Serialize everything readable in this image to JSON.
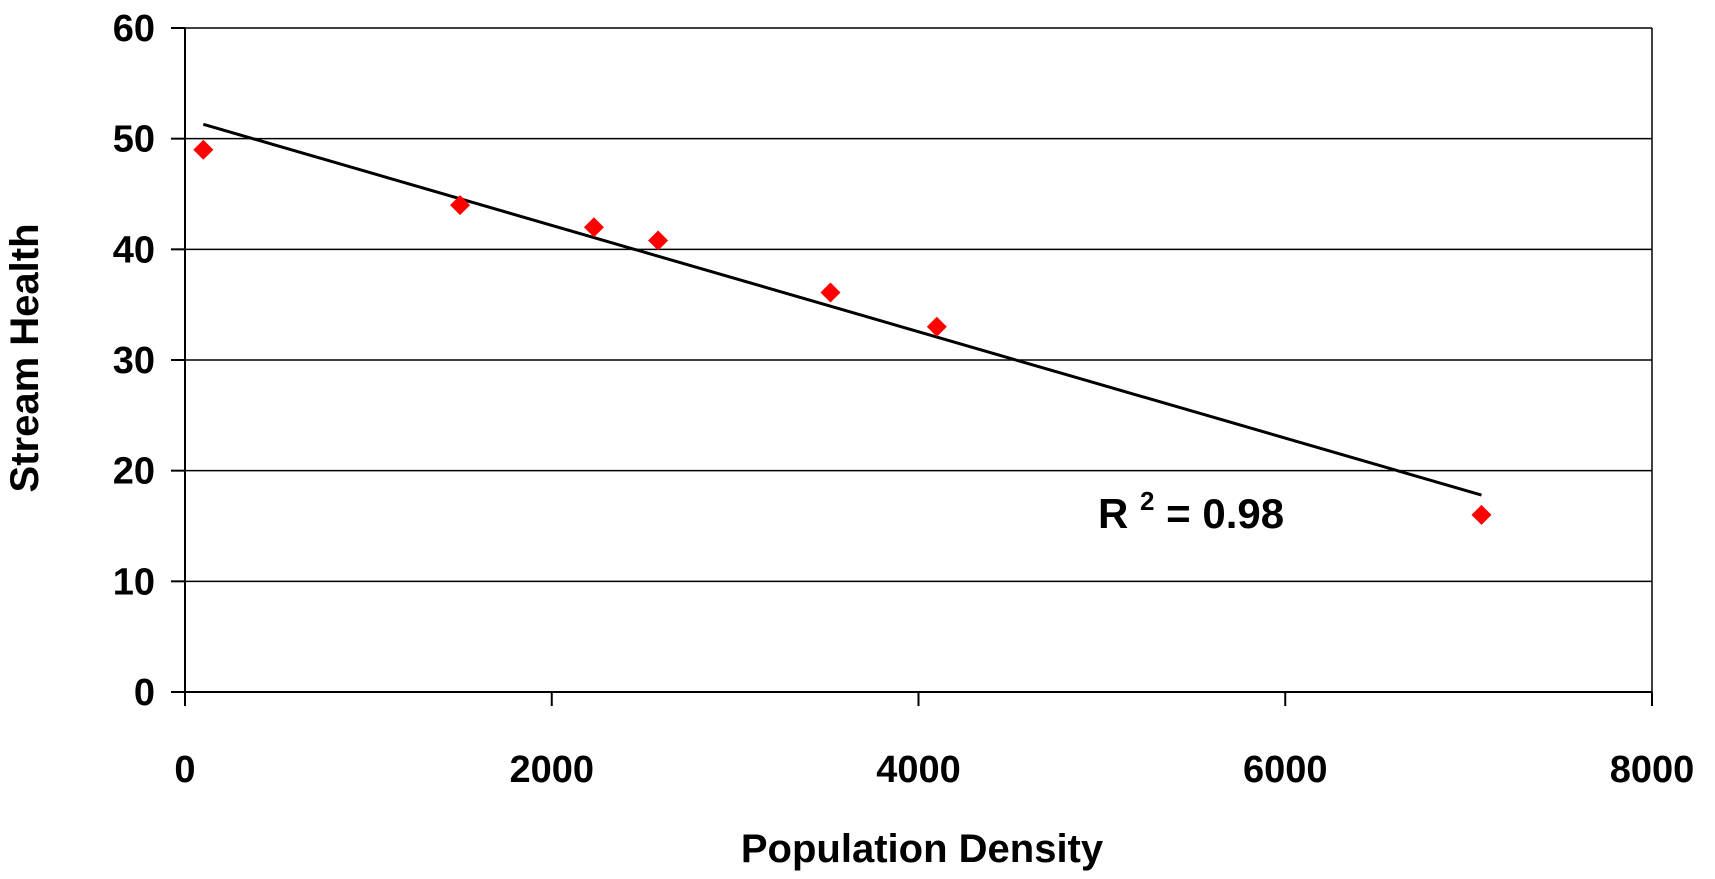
{
  "chart_data": {
    "type": "scatter",
    "title": "",
    "xlabel": "Population Density",
    "ylabel": "Stream Health",
    "xlim": [
      0,
      8000
    ],
    "ylim": [
      0,
      60
    ],
    "x_ticks": [
      0,
      2000,
      4000,
      6000,
      8000
    ],
    "y_ticks": [
      0,
      10,
      20,
      30,
      40,
      50,
      60
    ],
    "x_tick_labels": [
      "0",
      "2000",
      "4000",
      "6000",
      "8000"
    ],
    "y_tick_labels": [
      "0",
      "10",
      "20",
      "30",
      "40",
      "50",
      "60"
    ],
    "grid": "horizontal",
    "legend": "none",
    "points": [
      {
        "x": 100,
        "y": 49
      },
      {
        "x": 1500,
        "y": 44
      },
      {
        "x": 2230,
        "y": 42
      },
      {
        "x": 2580,
        "y": 40.8
      },
      {
        "x": 3520,
        "y": 36.1
      },
      {
        "x": 4100,
        "y": 33
      },
      {
        "x": 7070,
        "y": 16
      }
    ],
    "trendline": {
      "type": "linear",
      "from": {
        "x": 100,
        "y": 51.3
      },
      "to": {
        "x": 7070,
        "y": 17.8
      }
    },
    "annotation": {
      "prefix": "R",
      "superscript": "2",
      "suffix": " = 0.98"
    },
    "colors": {
      "points": "#ff0000",
      "trendline": "#000000",
      "grid": "#000000",
      "axes": "#000000"
    }
  }
}
